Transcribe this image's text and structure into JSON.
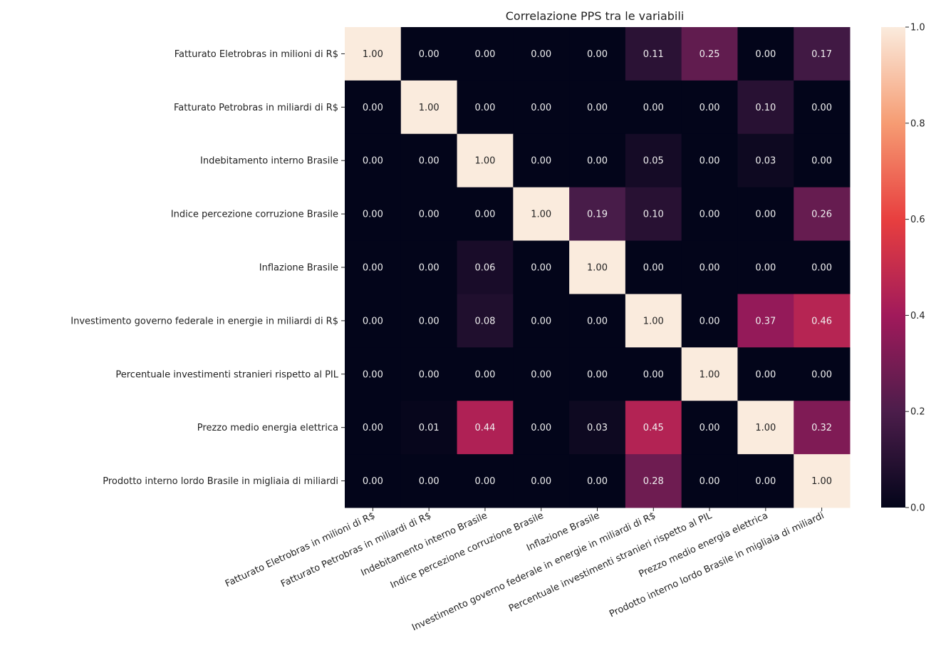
{
  "chart_data": {
    "type": "heatmap",
    "title": "Correlazione PPS tra le variabili",
    "ylabel": "",
    "xlabel": "",
    "rows": [
      "Fatturato Eletrobras in milioni di R$",
      "Fatturato Petrobras in miliardi di R$",
      "Indebitamento interno Brasile",
      "Indice percezione corruzione Brasile",
      "Inflazione Brasile",
      "Investimento governo federale in energie in miliardi di R$",
      "Percentuale investimenti stranieri rispetto al PIL",
      "Prezzo medio energia elettrica",
      "Prodotto interno lordo Brasile in migliaia di miliardi"
    ],
    "columns": [
      "Fatturato Eletrobras in milioni di R$",
      "Fatturato Petrobras in miliardi di R$",
      "Indebitamento interno Brasile",
      "Indice percezione corruzione Brasile",
      "Inflazione Brasile",
      "Investimento governo federale in energie in miliardi di R$",
      "Percentuale investimenti stranieri rispetto al PIL",
      "Prezzo medio energia elettrica",
      "Prodotto interno lordo Brasile in migliaia di miliardi"
    ],
    "values": [
      [
        1.0,
        0.0,
        0.0,
        0.0,
        0.0,
        0.11,
        0.25,
        0.0,
        0.17
      ],
      [
        0.0,
        1.0,
        0.0,
        0.0,
        0.0,
        0.0,
        0.0,
        0.1,
        0.0
      ],
      [
        0.0,
        0.0,
        1.0,
        0.0,
        0.0,
        0.05,
        0.0,
        0.03,
        0.0
      ],
      [
        0.0,
        0.0,
        0.0,
        1.0,
        0.19,
        0.1,
        0.0,
        0.0,
        0.26
      ],
      [
        0.0,
        0.0,
        0.06,
        0.0,
        1.0,
        0.0,
        0.0,
        0.0,
        0.0
      ],
      [
        0.0,
        0.0,
        0.08,
        0.0,
        0.0,
        1.0,
        0.0,
        0.37,
        0.46
      ],
      [
        0.0,
        0.0,
        0.0,
        0.0,
        0.0,
        0.0,
        1.0,
        0.0,
        0.0
      ],
      [
        0.0,
        0.01,
        0.44,
        0.0,
        0.03,
        0.45,
        0.0,
        1.0,
        0.32
      ],
      [
        0.0,
        0.0,
        0.0,
        0.0,
        0.0,
        0.28,
        0.0,
        0.0,
        1.0
      ]
    ],
    "value_format": "0.00",
    "colorbar": {
      "range": [
        0.0,
        1.0
      ],
      "ticks": [
        0.0,
        0.2,
        0.4,
        0.6,
        0.8,
        1.0
      ],
      "tick_labels": [
        "0.0",
        "0.2",
        "0.4",
        "0.6",
        "0.8",
        "1.0"
      ]
    },
    "colormap": "rocket",
    "colormap_stops": [
      "#03051a",
      "#4c1d4b",
      "#a11a5b",
      "#e83f3f",
      "#f69c73",
      "#faebdd"
    ]
  }
}
